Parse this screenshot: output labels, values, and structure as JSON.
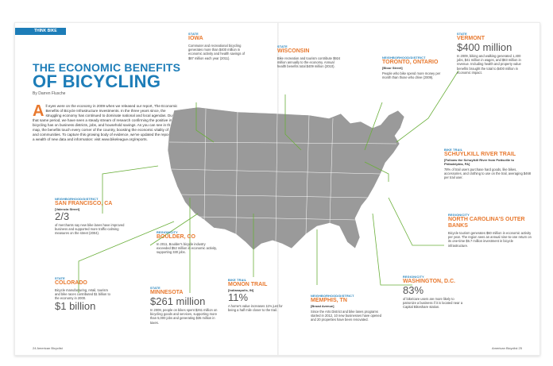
{
  "section_tab": "THINK BIKE",
  "title_line1": "THE ECONOMIC BENEFITS",
  "title_line2": "OF BICYCLING",
  "byline": "By Darren Flusche",
  "intro": "ll eyes were on the economy in 2009 when we released our report, The Economic Benefits of Bicycle Infrastructure Investments. In the three years since, the struggling economy has continued to dominate national and local agendas. During that same period, we have seen a steady stream of research confirming the positive impact bicycling has on business districts, jobs, and household savings. As you can see in the map, the benefits touch every corner of the country, boosting the economic vitality of states and communities. To capture this growing body of evidence, we've updated the report with a wealth of new data and information: visit www.bikeleague.org/reports.",
  "intro_dropcap": "A",
  "blocks": {
    "iowa": {
      "kicker": "STATE",
      "head": "IOWA",
      "body": "Commuter and recreational bicycling generates more than $400 million in economic activity and health savings of $87 million each year (2011)."
    },
    "wisconsin": {
      "kicker": "STATE",
      "head": "WISCONSIN",
      "body": "Bike recreation and tourism contribute $924 million annually to the economy. Annual health benefits total $409 million (2010)."
    },
    "vermont": {
      "kicker": "STATE",
      "head": "VERMONT",
      "big": "$400 million",
      "body": "In 2009, biking and walking generated 1,400 jobs, $41 million in wages, and $83 million in revenue. Including health and property value benefits brought the total to $400 million in economic impact."
    },
    "toronto": {
      "kicker": "NEIGHBORHOOD/DISTRICT",
      "head": "TORONTO, ONTARIO",
      "sub": "[Bloor Street]",
      "body": "People who bike spend more money per month than those who drive (2009)."
    },
    "schuylkill": {
      "kicker": "BIKE TRAIL",
      "head": "SCHUYLKILL RIVER TRAIL",
      "sub": "[Follows the Schuylkill River from Pottsville to Philadelphia, PA]",
      "body": "78% of trail users purchase hard goods, like bikes, accessories, and clothing to use on the trail, averaging $468 per trail user."
    },
    "outerbanks": {
      "kicker": "REGION/CITY",
      "head": "NORTH CAROLINA'S OUTER BANKS",
      "body": "Bicycle tourism generates $60 million in economic activity per year. The region sees an annual nine-to-one return on its one-time $6.7 million investment in bicycle infrastructure."
    },
    "dc": {
      "kicker": "REGION/CITY",
      "head": "WASHINGTON, D.C.",
      "big": "83%",
      "body": "of bike/care users are more likely to patronize a business if it is located near a Capital Bikeshare station."
    },
    "memphis": {
      "kicker": "NEIGHBORHOOD/DISTRICT",
      "head": "MEMPHIS, TN",
      "sub": "[Broad Avenue]",
      "body": "Since the Arts District and bike lanes programs started in 2012, 10 new businesses have opened and 20 properties have been renovated."
    },
    "monon": {
      "kicker": "BIKE TRAIL",
      "head": "MONON TRAIL",
      "sub": "[Indianapolis, IN]",
      "big": "11%",
      "body": "A home's value increases 11% just for being a half mile closer to the trail."
    },
    "minnesota": {
      "kicker": "STATE",
      "head": "MINNESOTA",
      "big": "$261 million",
      "body": "In 2009, people on bikes spent $261 million on bicycling goods and services, supporting more than 5,000 jobs and generating $35 million in taxes."
    },
    "boulder": {
      "kicker": "REGION/CITY",
      "head": "BOULDER, CO",
      "body": "In 2011, Boulder's bicycle industry exceeded $52 million in economic activity, supporting 330 jobs."
    },
    "sanfrancisco": {
      "kicker": "NEIGHBORHOOD/DISTRICT",
      "head": "SAN FRANCISCO, CA",
      "sub": "[Valencia Street]",
      "big": "2/3",
      "body": "of merchants say new bike lanes have improved business and supported more traffic-calming measures on the street (2004)."
    },
    "colorado": {
      "kicker": "STATE",
      "head": "COLORADO",
      "big": "$1 billion",
      "body": "Bicycle manufacturing, retail, tourism and bike races contributed $1 billion to the economy in 2000."
    }
  },
  "footer_left": "24  American Bicyclist",
  "footer_right": "American Bicyclist  25",
  "colors": {
    "accent": "#1d7db8",
    "highlight": "#e8792f",
    "map": "#9a9a9a"
  }
}
